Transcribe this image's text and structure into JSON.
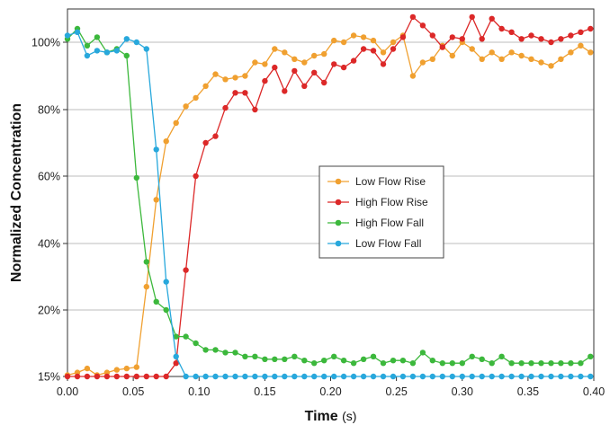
{
  "chart_data": {
    "type": "line",
    "title": "",
    "xlabel": "Time",
    "xlabel_unit": "(s)",
    "ylabel": "Normalized Concentration",
    "xlim": [
      0,
      0.4
    ],
    "x_ticks": [
      0,
      0.05,
      0.1,
      0.15,
      0.2,
      0.25,
      0.3,
      0.35,
      0.4
    ],
    "x_tick_labels": [
      "0.00",
      "0.05",
      "0.10",
      "0.15",
      "0.20",
      "0.25",
      "0.30",
      "0.35",
      "0.40"
    ],
    "y_tick_labels": [
      "15%",
      "20%",
      "40%",
      "60%",
      "80%",
      "100%"
    ],
    "grid": "horizontal",
    "legend_position": "center",
    "series": [
      {
        "name": "Low Flow Rise",
        "color": "#f0a030",
        "x": [
          0.0,
          0.0075,
          0.015,
          0.0225,
          0.03,
          0.0375,
          0.045,
          0.0525,
          0.06,
          0.0675,
          0.075,
          0.0825,
          0.09,
          0.0975,
          0.105,
          0.1125,
          0.12,
          0.1275,
          0.135,
          0.1425,
          0.15,
          0.1575,
          0.165,
          0.1725,
          0.18,
          0.1875,
          0.195,
          0.2025,
          0.21,
          0.2175,
          0.225,
          0.2325,
          0.24,
          0.2475,
          0.255,
          0.2625,
          0.27,
          0.2775,
          0.285,
          0.2925,
          0.3,
          0.3075,
          0.315,
          0.3225,
          0.33,
          0.3375,
          0.345,
          0.3525,
          0.36,
          0.3675,
          0.375,
          0.3825,
          0.39,
          0.3975
        ],
        "y": [
          15.1,
          15.3,
          15.6,
          15.1,
          15.3,
          15.5,
          15.6,
          15.7,
          27.0,
          53.0,
          70.5,
          76.0,
          81.0,
          83.5,
          87.0,
          90.5,
          89.0,
          89.5,
          90.0,
          94.0,
          93.5,
          98.0,
          97.0,
          95.0,
          94.0,
          96.0,
          96.5,
          100.5,
          100.0,
          102.0,
          101.5,
          100.5,
          97.0,
          100.0,
          102.0,
          90.0,
          94.0,
          95.0,
          99.0,
          96.0,
          100.0,
          98.0,
          95.0,
          97.0,
          95.0,
          97.0,
          96.0,
          95.0,
          94.0,
          93.0,
          95.0,
          97.0,
          99.0,
          97.0
        ]
      },
      {
        "name": "High Flow Rise",
        "color": "#dc2828",
        "x": [
          0.0,
          0.0075,
          0.015,
          0.0225,
          0.03,
          0.0375,
          0.045,
          0.0525,
          0.06,
          0.0675,
          0.075,
          0.0825,
          0.09,
          0.0975,
          0.105,
          0.1125,
          0.12,
          0.1275,
          0.135,
          0.1425,
          0.15,
          0.1575,
          0.165,
          0.1725,
          0.18,
          0.1875,
          0.195,
          0.2025,
          0.21,
          0.2175,
          0.225,
          0.2325,
          0.24,
          0.2475,
          0.255,
          0.2625,
          0.27,
          0.2775,
          0.285,
          0.2925,
          0.3,
          0.3075,
          0.315,
          0.3225,
          0.33,
          0.3375,
          0.345,
          0.3525,
          0.36,
          0.3675,
          0.375,
          0.3825,
          0.39,
          0.3975
        ],
        "y": [
          15.0,
          15.0,
          15.0,
          15.0,
          15.0,
          15.0,
          15.0,
          15.0,
          15.0,
          15.0,
          15.0,
          16.0,
          32.0,
          60.0,
          70.0,
          72.0,
          80.5,
          85.0,
          85.0,
          80.0,
          88.5,
          92.5,
          85.5,
          91.5,
          87.0,
          91.0,
          88.0,
          93.5,
          92.5,
          94.5,
          98.0,
          97.5,
          93.5,
          98.0,
          101.5,
          107.5,
          105.0,
          102.0,
          98.5,
          101.5,
          101.0,
          107.5,
          101.0,
          107.0,
          104.0,
          103.0,
          101.0,
          102.0,
          101.0,
          100.0,
          101.0,
          102.0,
          103.0,
          104.0
        ]
      },
      {
        "name": "High Flow Fall",
        "color": "#3cb83c",
        "x": [
          0.0,
          0.0075,
          0.015,
          0.0225,
          0.03,
          0.0375,
          0.045,
          0.0525,
          0.06,
          0.0675,
          0.075,
          0.0825,
          0.09,
          0.0975,
          0.105,
          0.1125,
          0.12,
          0.1275,
          0.135,
          0.1425,
          0.15,
          0.1575,
          0.165,
          0.1725,
          0.18,
          0.1875,
          0.195,
          0.2025,
          0.21,
          0.2175,
          0.225,
          0.2325,
          0.24,
          0.2475,
          0.255,
          0.2625,
          0.27,
          0.2775,
          0.285,
          0.2925,
          0.3,
          0.3075,
          0.315,
          0.3225,
          0.33,
          0.3375,
          0.345,
          0.3525,
          0.36,
          0.3675,
          0.375,
          0.3825,
          0.39,
          0.3975
        ],
        "y": [
          101.0,
          104.0,
          99.0,
          101.5,
          97.0,
          98.0,
          96.0,
          59.5,
          34.5,
          22.5,
          20.0,
          18.0,
          18.0,
          17.5,
          17.0,
          17.0,
          16.8,
          16.8,
          16.5,
          16.5,
          16.3,
          16.3,
          16.3,
          16.5,
          16.2,
          16.0,
          16.2,
          16.5,
          16.2,
          16.0,
          16.3,
          16.5,
          16.0,
          16.2,
          16.2,
          16.0,
          16.8,
          16.2,
          16.0,
          16.0,
          16.0,
          16.5,
          16.3,
          16.0,
          16.5,
          16.0,
          16.0,
          16.0,
          16.0,
          16.0,
          16.0,
          16.0,
          16.0,
          16.5
        ]
      },
      {
        "name": "Low Flow Fall",
        "color": "#28a8dc",
        "x": [
          0.0,
          0.0075,
          0.015,
          0.0225,
          0.03,
          0.0375,
          0.045,
          0.0525,
          0.06,
          0.0675,
          0.075,
          0.0825,
          0.09,
          0.0975,
          0.105,
          0.1125,
          0.12,
          0.1275,
          0.135,
          0.1425,
          0.15,
          0.1575,
          0.165,
          0.1725,
          0.18,
          0.1875,
          0.195,
          0.2025,
          0.21,
          0.2175,
          0.225,
          0.2325,
          0.24,
          0.2475,
          0.255,
          0.2625,
          0.27,
          0.2775,
          0.285,
          0.2925,
          0.3,
          0.3075,
          0.315,
          0.3225,
          0.33,
          0.3375,
          0.345,
          0.3525,
          0.36,
          0.3675,
          0.375,
          0.3825,
          0.39,
          0.3975
        ],
        "y": [
          102.0,
          103.0,
          96.0,
          97.5,
          97.0,
          97.5,
          101.0,
          100.0,
          98.0,
          68.0,
          28.5,
          16.5,
          15.0,
          15.0,
          15.0,
          15.0,
          15.0,
          15.0,
          15.0,
          15.0,
          15.0,
          15.0,
          15.0,
          15.0,
          15.0,
          15.0,
          15.0,
          15.0,
          15.0,
          15.0,
          15.0,
          15.0,
          15.0,
          15.0,
          15.0,
          15.0,
          15.0,
          15.0,
          15.0,
          15.0,
          15.0,
          15.0,
          15.0,
          15.0,
          15.0,
          15.0,
          15.0,
          15.0,
          15.0,
          15.0,
          15.0,
          15.0,
          15.0,
          15.0
        ]
      }
    ]
  }
}
